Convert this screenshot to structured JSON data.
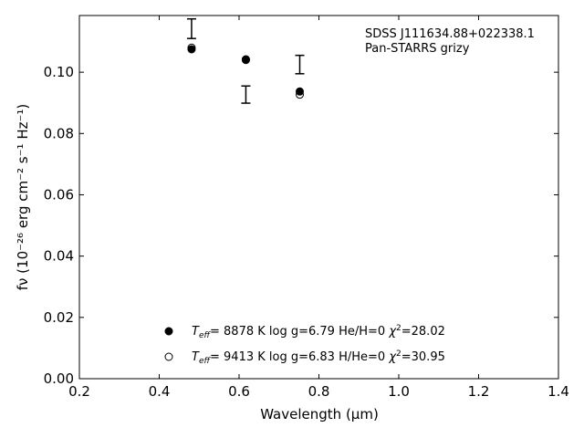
{
  "chart_data": {
    "type": "scatter",
    "annotation": [
      "SDSS J111634.88+022338.1",
      "Pan-STARRS grizy"
    ],
    "xlabel": "Wavelength (μm)",
    "ylabel": "fν (10⁻²⁶ erg cm⁻² s⁻¹ Hz⁻¹)",
    "xlim": [
      0.2,
      1.4
    ],
    "ylim": [
      0.0,
      0.1185
    ],
    "xticks": [
      0.2,
      0.4,
      0.6,
      0.8,
      1.0,
      1.2,
      1.4
    ],
    "xtick_labels": [
      "0.2",
      "0.4",
      "0.6",
      "0.8",
      "1.0",
      "1.2",
      "1.4"
    ],
    "yticks": [
      0.0,
      0.02,
      0.04,
      0.06,
      0.08,
      0.1
    ],
    "ytick_labels": [
      "0.00",
      "0.02",
      "0.04",
      "0.06",
      "0.08",
      "0.10"
    ],
    "grid": false,
    "observed": [
      {
        "x": 0.481,
        "y": 0.1142,
        "err": 0.0032
      },
      {
        "x": 0.617,
        "y": 0.0927,
        "err": 0.0028
      },
      {
        "x": 0.752,
        "y": 0.1025,
        "err": 0.003
      }
    ],
    "series": [
      {
        "marker": "filled-circle",
        "legend": {
          "teff": "8878 K",
          "logg": "log g=6.79",
          "comp": "He/H=0",
          "chi2": "28.02"
        },
        "points": [
          {
            "x": 0.481,
            "y": 0.1075
          },
          {
            "x": 0.617,
            "y": 0.1042
          },
          {
            "x": 0.752,
            "y": 0.0937
          }
        ]
      },
      {
        "marker": "open-circle",
        "legend": {
          "teff": "9413 K",
          "logg": "log g=6.83",
          "comp": "H/He=0",
          "chi2": "30.95"
        },
        "points": [
          {
            "x": 0.481,
            "y": 0.108
          },
          {
            "x": 0.617,
            "y": 0.104
          },
          {
            "x": 0.752,
            "y": 0.0927
          }
        ]
      }
    ]
  }
}
